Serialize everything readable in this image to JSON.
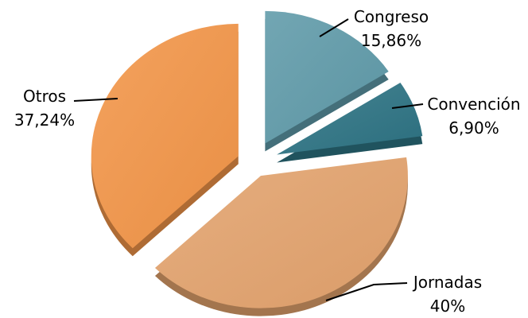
{
  "chart_data": {
    "type": "pie",
    "title": "",
    "exploded": true,
    "three_d": true,
    "legend": "none",
    "slices": [
      {
        "name": "Congreso",
        "value": 15.86,
        "label": "15,86%",
        "color": "#5f9aa9"
      },
      {
        "name": "Convención",
        "value": 6.9,
        "label": "6,90%",
        "color": "#2d7383"
      },
      {
        "name": "Jornadas",
        "value": 40.0,
        "label": "40%",
        "color": "#e3a36d"
      },
      {
        "name": "Otros",
        "value": 37.24,
        "label": "37,24%",
        "color": "#f29548"
      }
    ]
  }
}
